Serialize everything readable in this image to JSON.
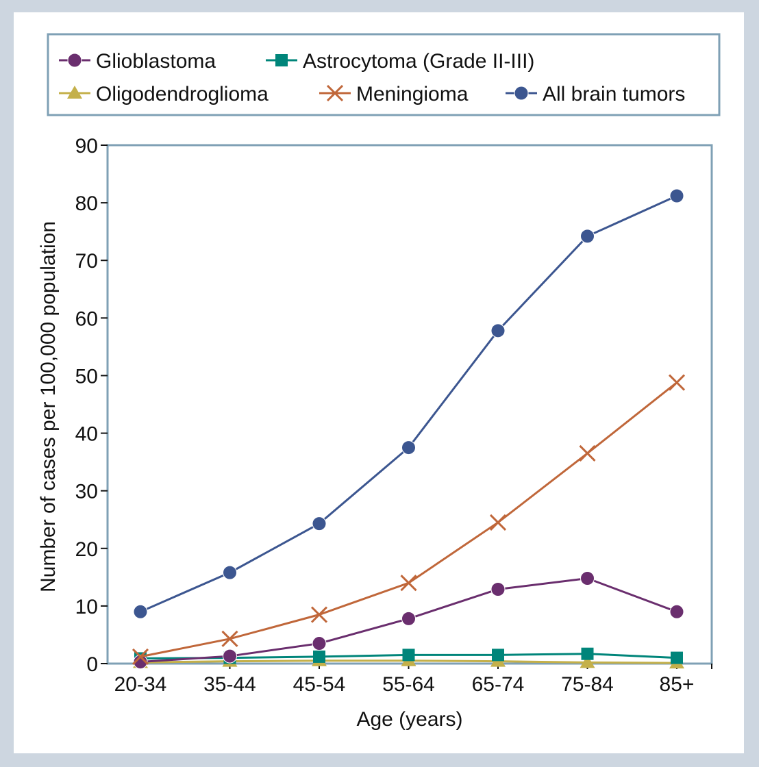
{
  "chart_data": {
    "type": "line",
    "categories": [
      "20-34",
      "35-44",
      "45-54",
      "55-64",
      "65-74",
      "75-84",
      "85+"
    ],
    "series": [
      {
        "name": "Glioblastoma",
        "color": "#6a2e6e",
        "marker": "circle",
        "values": [
          0.3,
          1.3,
          3.5,
          7.8,
          12.9,
          14.8,
          9.0
        ]
      },
      {
        "name": "Astrocytoma (Grade II-III)",
        "color": "#00857a",
        "marker": "square",
        "values": [
          0.9,
          1.0,
          1.2,
          1.5,
          1.5,
          1.7,
          1.0
        ]
      },
      {
        "name": "Oligodendroglioma",
        "color": "#c4b04a",
        "marker": "triangle",
        "values": [
          0.2,
          0.4,
          0.5,
          0.5,
          0.4,
          0.2,
          0.1
        ]
      },
      {
        "name": "Meningioma",
        "color": "#c0673a",
        "marker": "x",
        "values": [
          1.2,
          4.3,
          8.5,
          14.0,
          24.5,
          36.5,
          48.8
        ]
      },
      {
        "name": "All brain tumors",
        "color": "#3c5690",
        "marker": "circle",
        "values": [
          9.0,
          15.8,
          24.3,
          37.5,
          57.8,
          74.2,
          81.2
        ]
      }
    ],
    "ylim": [
      0,
      90
    ],
    "yticks": [
      0,
      10,
      20,
      30,
      40,
      50,
      60,
      70,
      80,
      90
    ],
    "xlabel": "Age (years)",
    "ylabel": "Number of cases per 100,000 population",
    "legend_position": "top"
  }
}
